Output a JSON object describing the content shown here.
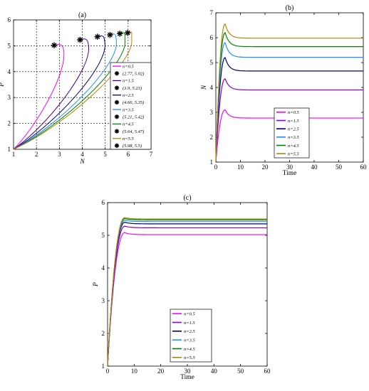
{
  "chart_data": [
    {
      "id": "a",
      "title": "(a)",
      "type": "line",
      "xlabel": "N",
      "ylabel": "P",
      "xlim": [
        1,
        7
      ],
      "ylim": [
        1,
        6
      ],
      "xticks": [
        "1",
        "2",
        "3",
        "4",
        "5",
        "6",
        "7"
      ],
      "yticks": [
        "1",
        "2",
        "3",
        "4",
        "5",
        "6"
      ],
      "grid": true,
      "legend_position": "right",
      "colors": [
        "#ff00ff",
        "#4b0082",
        "#000080",
        "#1e90ff",
        "#008000",
        "#b8860b"
      ],
      "series": [
        {
          "name": "n=0.5",
          "end": [
            2.77,
            5.02
          ],
          "marker_label": "(2.77, 5.02)"
        },
        {
          "name": "n=1.5",
          "end": [
            3.9,
            5.23
          ],
          "marker_label": "(3.9, 5.23)"
        },
        {
          "name": "n=2.5",
          "end": [
            4.66,
            5.35
          ],
          "marker_label": "(4.66, 5.35)"
        },
        {
          "name": "n=3.5",
          "end": [
            5.21,
            5.42
          ],
          "marker_label": "(5.21, 5.42)"
        },
        {
          "name": "n=4.5",
          "end": [
            5.64,
            5.47
          ],
          "marker_label": "(5.64, 5.47)"
        },
        {
          "name": "n=5.5",
          "end": [
            5.98,
            5.5
          ],
          "marker_label": "(5.98, 5.5)"
        }
      ]
    },
    {
      "id": "b",
      "title": "(b)",
      "type": "line",
      "xlabel": "Time",
      "ylabel": "N",
      "xlim": [
        0,
        60
      ],
      "ylim": [
        1,
        7
      ],
      "xticks": [
        "0",
        "10",
        "20",
        "30",
        "40",
        "50",
        "60"
      ],
      "yticks": [
        "1",
        "2",
        "3",
        "4",
        "5",
        "6",
        "7"
      ],
      "legend_position": "bottom-center",
      "colors": [
        "#ff00ff",
        "#8b00c8",
        "#000080",
        "#1e90ff",
        "#008000",
        "#b8860b"
      ],
      "series": [
        {
          "name": "n=0.5",
          "peak": 3.1,
          "steady": 2.77
        },
        {
          "name": "n=1.5",
          "peak": 4.35,
          "steady": 3.9
        },
        {
          "name": "n=2.5",
          "peak": 5.2,
          "steady": 4.66
        },
        {
          "name": "n=3.5",
          "peak": 5.8,
          "steady": 5.21
        },
        {
          "name": "n=4.5",
          "peak": 6.2,
          "steady": 5.64
        },
        {
          "name": "n=5.5",
          "peak": 6.55,
          "steady": 5.98
        }
      ]
    },
    {
      "id": "c",
      "title": "(c)",
      "type": "line",
      "xlabel": "Time",
      "ylabel": "P",
      "xlim": [
        0,
        60
      ],
      "ylim": [
        1,
        6
      ],
      "xticks": [
        "0",
        "10",
        "20",
        "30",
        "40",
        "50",
        "60"
      ],
      "yticks": [
        "1",
        "2",
        "3",
        "4",
        "5",
        "6"
      ],
      "legend_position": "bottom-center",
      "colors": [
        "#ff00ff",
        "#8b00c8",
        "#000080",
        "#1e90ff",
        "#008000",
        "#b8860b"
      ],
      "series": [
        {
          "name": "n=0.5",
          "peak": 5.08,
          "steady": 5.02
        },
        {
          "name": "n=1.5",
          "peak": 5.28,
          "steady": 5.23
        },
        {
          "name": "n=2.5",
          "peak": 5.4,
          "steady": 5.35
        },
        {
          "name": "n=3.5",
          "peak": 5.46,
          "steady": 5.42
        },
        {
          "name": "n=4.5",
          "peak": 5.51,
          "steady": 5.47
        },
        {
          "name": "n=5.5",
          "peak": 5.54,
          "steady": 5.5
        }
      ]
    }
  ]
}
